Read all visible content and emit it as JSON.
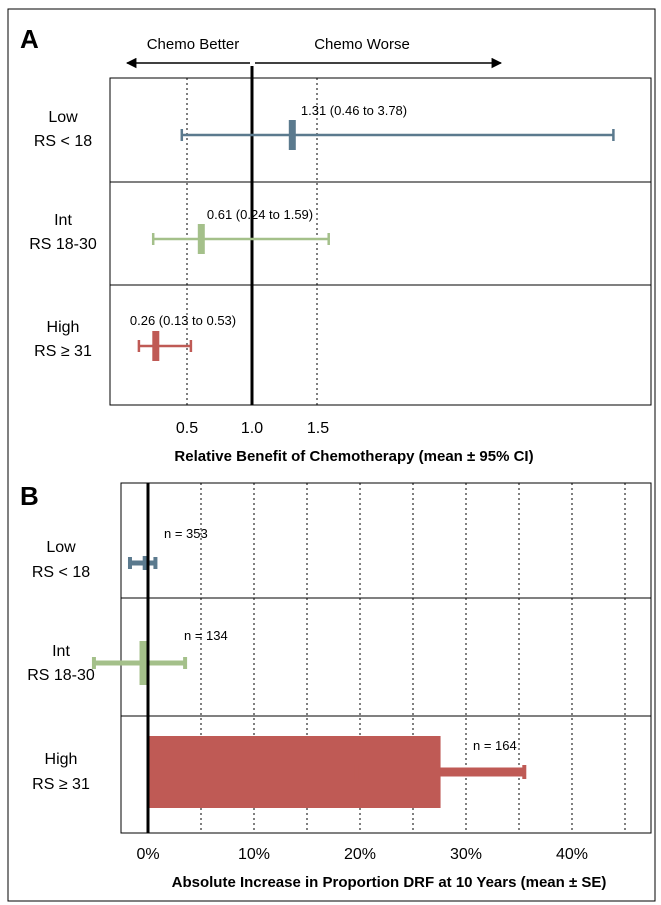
{
  "chart_data": [
    {
      "type": "forest",
      "panel_label": "A",
      "direction_labels": {
        "left": "Chemo Better",
        "right": "Chemo Worse"
      },
      "categories": [
        {
          "name": "Low",
          "sub": "RS < 18"
        },
        {
          "name": "Int",
          "sub": "RS 18-30"
        },
        {
          "name": "High",
          "sub": "RS ≥ 31"
        }
      ],
      "series": [
        {
          "mean": 1.31,
          "ci": [
            0.46,
            3.78
          ],
          "label": "1.31 (0.46 to 3.78)",
          "color": "#5b7a8e"
        },
        {
          "mean": 0.61,
          "ci": [
            0.24,
            1.59
          ],
          "label": "0.61 (0.24 to 1.59)",
          "color": "#a4c08a"
        },
        {
          "mean": 0.26,
          "ci": [
            0.13,
            0.53
          ],
          "label": "0.26 (0.13 to 0.53)",
          "color": "#bf5a55"
        }
      ],
      "xticks": [
        "0.5",
        "1.0",
        "1.5"
      ],
      "reference_line": 1.0,
      "xlabel": "Relative Benefit of Chemotherapy (mean ± 95% CI)"
    },
    {
      "type": "bar",
      "panel_label": "B",
      "categories": [
        {
          "name": "Low",
          "sub": "RS < 18"
        },
        {
          "name": "Int",
          "sub": "RS 18-30"
        },
        {
          "name": "High",
          "sub": "RS ≥ 31"
        }
      ],
      "series": [
        {
          "value": -0.5,
          "se": 1.2,
          "n_label": "n = 353",
          "color": "#5b7a8e"
        },
        {
          "value": -0.8,
          "se": 4.3,
          "n_label": "n = 134",
          "color": "#a4c08a"
        },
        {
          "value": 27.6,
          "se": 7.9,
          "n_label": "n = 164",
          "color": "#bf5a55"
        }
      ],
      "xlim": [
        -3.5,
        46.5
      ],
      "xticks": [
        "0%",
        "10%",
        "20%",
        "30%",
        "40%"
      ],
      "xlabel": "Absolute Increase in Proportion DRF at 10 Years (mean ± SE)"
    }
  ]
}
